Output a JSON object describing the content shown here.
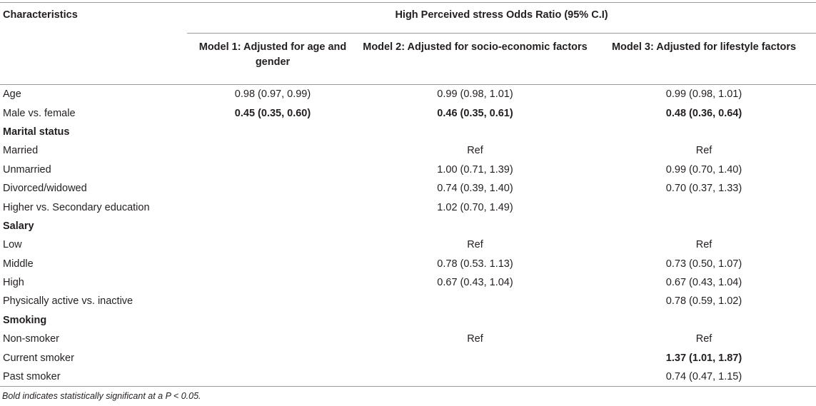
{
  "table": {
    "header": {
      "characteristics": "Characteristics",
      "group": "High Perceived stress Odds Ratio (95% C.I)",
      "model1": "Model 1: Adjusted for age and gender",
      "model2": "Model 2: Adjusted for socio-economic factors",
      "model3": "Model 3: Adjusted for lifestyle factors"
    },
    "rows": [
      {
        "label": "Age",
        "m1": "0.98 (0.97, 0.99)",
        "m2": "0.99 (0.98, 1.01)",
        "m3": "0.99 (0.98, 1.01)",
        "section": false,
        "bold": [
          false,
          false,
          false
        ]
      },
      {
        "label": "Male vs. female",
        "m1": "0.45 (0.35, 0.60)",
        "m2": "0.46 (0.35, 0.61)",
        "m3": "0.48 (0.36, 0.64)",
        "section": false,
        "bold": [
          true,
          true,
          true
        ]
      },
      {
        "label": "Marital status",
        "m1": "",
        "m2": "",
        "m3": "",
        "section": true,
        "bold": [
          false,
          false,
          false
        ]
      },
      {
        "label": "Married",
        "m1": "",
        "m2": "Ref",
        "m3": "Ref",
        "section": false,
        "bold": [
          false,
          false,
          false
        ]
      },
      {
        "label": "Unmarried",
        "m1": "",
        "m2": "1.00 (0.71, 1.39)",
        "m3": "0.99 (0.70, 1.40)",
        "section": false,
        "bold": [
          false,
          false,
          false
        ]
      },
      {
        "label": "Divorced/widowed",
        "m1": "",
        "m2": "0.74 (0.39, 1.40)",
        "m3": "0.70 (0.37, 1.33)",
        "section": false,
        "bold": [
          false,
          false,
          false
        ]
      },
      {
        "label": "Higher vs. Secondary education",
        "m1": "",
        "m2": "1.02 (0.70, 1.49)",
        "m3": "",
        "section": false,
        "bold": [
          false,
          false,
          false
        ]
      },
      {
        "label": "Salary",
        "m1": "",
        "m2": "",
        "m3": "",
        "section": true,
        "bold": [
          false,
          false,
          false
        ]
      },
      {
        "label": "Low",
        "m1": "",
        "m2": "Ref",
        "m3": "Ref",
        "section": false,
        "bold": [
          false,
          false,
          false
        ]
      },
      {
        "label": "Middle",
        "m1": "",
        "m2": "0.78 (0.53. 1.13)",
        "m3": "0.73 (0.50, 1.07)",
        "section": false,
        "bold": [
          false,
          false,
          false
        ]
      },
      {
        "label": "High",
        "m1": "",
        "m2": "0.67 (0.43, 1.04)",
        "m3": "0.67 (0.43, 1.04)",
        "section": false,
        "bold": [
          false,
          false,
          false
        ]
      },
      {
        "label": "Physically active vs. inactive",
        "m1": "",
        "m2": "",
        "m3": "0.78 (0.59, 1.02)",
        "section": false,
        "bold": [
          false,
          false,
          false
        ]
      },
      {
        "label": "Smoking",
        "m1": "",
        "m2": "",
        "m3": "",
        "section": true,
        "bold": [
          false,
          false,
          false
        ]
      },
      {
        "label": "Non-smoker",
        "m1": "",
        "m2": "Ref",
        "m3": "Ref",
        "section": false,
        "bold": [
          false,
          false,
          false
        ]
      },
      {
        "label": "Current smoker",
        "m1": "",
        "m2": "",
        "m3": "1.37 (1.01, 1.87)",
        "section": false,
        "bold": [
          false,
          false,
          true
        ]
      },
      {
        "label": "Past smoker",
        "m1": "",
        "m2": "",
        "m3": "0.74 (0.47, 1.15)",
        "section": false,
        "bold": [
          false,
          false,
          false
        ]
      }
    ]
  },
  "footnote": "Bold indicates statistically significant at a P < 0.05."
}
